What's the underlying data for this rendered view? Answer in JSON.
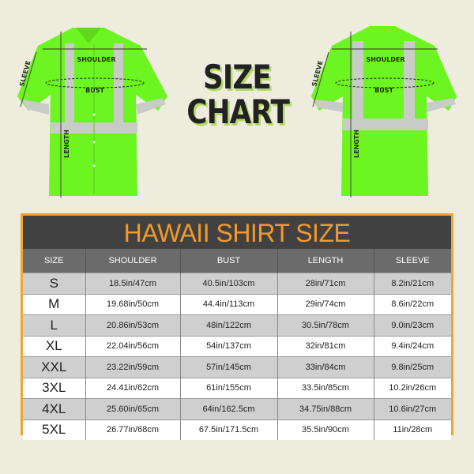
{
  "title": {
    "line1": "SIZE",
    "line2": "CHART"
  },
  "colors": {
    "shirt": "#6cf520",
    "reflective": "#c9cbc6",
    "accent": "#f39a2b",
    "title_band": "#414141",
    "header": "#6b6b6b",
    "background": "#edecdd"
  },
  "shirt_labels": {
    "shoulder": "SHOULDER",
    "bust": "BUST",
    "length": "LENGTH",
    "sleeve": "SLEEVE"
  },
  "table": {
    "title": "HAWAII SHIRT SIZE",
    "headers": [
      "SIZE",
      "SHOULDER",
      "BUST",
      "LENGTH",
      "SLEEVE"
    ],
    "rows": [
      [
        "S",
        "18.5in/47cm",
        "40.5in/103cm",
        "28in/71cm",
        "8.2in/21cm"
      ],
      [
        "M",
        "19.68in/50cm",
        "44.4in/113cm",
        "29in/74cm",
        "8.6in/22cm"
      ],
      [
        "L",
        "20.86in/53cm",
        "48in/122cm",
        "30.5in/78cm",
        "9.0in/23cm"
      ],
      [
        "XL",
        "22.04in/56cm",
        "54in/137cm",
        "32in/81cm",
        "9.4in/24cm"
      ],
      [
        "XXL",
        "23.22in/59cm",
        "57in/145cm",
        "33in/84cm",
        "9.8in/25cm"
      ],
      [
        "3XL",
        "24.41in/62cm",
        "61in/155cm",
        "33.5in/85cm",
        "10.2in/26cm"
      ],
      [
        "4XL",
        "25.60in/65cm",
        "64in/162.5cm",
        "34.75in/88cm",
        "10.6in/27cm"
      ],
      [
        "5XL",
        "26.77in/68cm",
        "67.5in/171.5cm",
        "35.5in/90cm",
        "11in/28cm"
      ]
    ]
  }
}
